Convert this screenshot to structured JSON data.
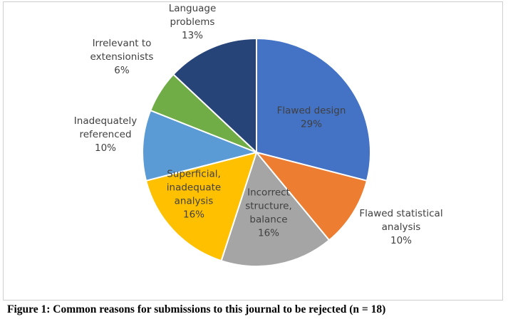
{
  "chart_data": {
    "type": "pie",
    "title": "",
    "caption": "Figure 1: Common reasons for submissions to this journal to be rejected (n = 18)",
    "slices": [
      {
        "name": "Flawed design",
        "label_lines": [
          "Flawed design"
        ],
        "value": 29,
        "percent_text": "29%",
        "color": "#4472C4"
      },
      {
        "name": "Flawed statistical analysis",
        "label_lines": [
          "Flawed statistical",
          "analysis"
        ],
        "value": 10,
        "percent_text": "10%",
        "color": "#ED7D31"
      },
      {
        "name": "Incorrect structure, balance",
        "label_lines": [
          "Incorrect",
          "structure,",
          "balance"
        ],
        "value": 16,
        "percent_text": "16%",
        "color": "#A5A5A5"
      },
      {
        "name": "Superficial, inadequate analysis",
        "label_lines": [
          "Superficial,",
          "inadequate",
          "analysis"
        ],
        "value": 16,
        "percent_text": "16%",
        "color": "#FFC000"
      },
      {
        "name": "Inadequately referenced",
        "label_lines": [
          "Inadequately",
          "referenced"
        ],
        "value": 10,
        "percent_text": "10%",
        "color": "#5B9BD5"
      },
      {
        "name": "Irrelevant to extensionists",
        "label_lines": [
          "Irrelevant to",
          "extensionists"
        ],
        "value": 6,
        "percent_text": "6%",
        "color": "#70AD47"
      },
      {
        "name": "Language problems",
        "label_lines": [
          "Language",
          "problems"
        ],
        "value": 13,
        "percent_text": "13%",
        "color": "#264478"
      }
    ],
    "start_angle": "12 o'clock",
    "direction": "clockwise",
    "legend": "none"
  }
}
